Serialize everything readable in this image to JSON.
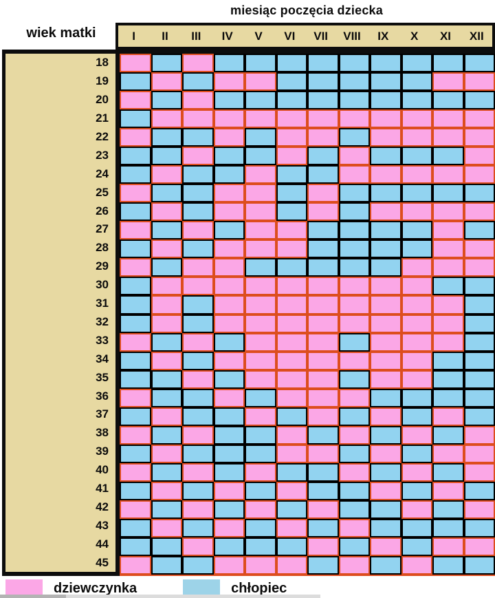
{
  "header": {
    "title": "miesiąc poczęcia dziecka",
    "row_axis_label": "wiek matki"
  },
  "legend": {
    "girl": "dziewczynka",
    "boy": "chłopiec"
  },
  "colors": {
    "girl_fill": "#fba7e6",
    "girl_border": "#dd4d1e",
    "boy_fill": "#92d3f0",
    "boy_fill_legend": "#9dd3e8",
    "header_bg": "#e7d9a2",
    "frame": "#0d0d0d"
  },
  "chart_data": {
    "type": "heatmap",
    "title": "miesiąc poczęcia dziecka",
    "xlabel": "miesiąc poczęcia dziecka",
    "ylabel": "wiek matki",
    "columns": [
      "I",
      "II",
      "III",
      "IV",
      "V",
      "VI",
      "VII",
      "VIII",
      "IX",
      "X",
      "XI",
      "XII"
    ],
    "value_legend": {
      "G": "dziewczynka",
      "B": "chłopiec"
    },
    "rows": [
      {
        "age": "18",
        "cells": "GBGBBBBBBBBB"
      },
      {
        "age": "19",
        "cells": "BGBGGBBBBBGG"
      },
      {
        "age": "20",
        "cells": "GBGBBBBBBBBB"
      },
      {
        "age": "21",
        "cells": "BGGGGGGGGGGG"
      },
      {
        "age": "22",
        "cells": "GBBGBGGBGGGG"
      },
      {
        "age": "23",
        "cells": "BBGBBGBGBBBG"
      },
      {
        "age": "24",
        "cells": "BGBBGBBGGGGG"
      },
      {
        "age": "25",
        "cells": "GBBGGBGBBBBB"
      },
      {
        "age": "26",
        "cells": "BGBGGBGBGGGG"
      },
      {
        "age": "27",
        "cells": "GBGBGGBBBBGB"
      },
      {
        "age": "28",
        "cells": "BGBGGGBBBBGG"
      },
      {
        "age": "29",
        "cells": "GBGGBBBBBGGG"
      },
      {
        "age": "30",
        "cells": "BGGGGGGGGGBB"
      },
      {
        "age": "31",
        "cells": "BGBGGGGGGGGB"
      },
      {
        "age": "32",
        "cells": "BGBGGGGGGGGB"
      },
      {
        "age": "33",
        "cells": "GBGBGGGBGGGB"
      },
      {
        "age": "34",
        "cells": "BGBGGGGGGGBB"
      },
      {
        "age": "35",
        "cells": "BBGBGGGBGGBB"
      },
      {
        "age": "36",
        "cells": "GBBGBGGGBBBB"
      },
      {
        "age": "37",
        "cells": "BGBBGBGBGBGB"
      },
      {
        "age": "38",
        "cells": "GBGBBGBGBGBG"
      },
      {
        "age": "39",
        "cells": "BGBBBGGBGBGG"
      },
      {
        "age": "40",
        "cells": "GBGBGBBGBGBG"
      },
      {
        "age": "41",
        "cells": "BGBGBGBBGBGB"
      },
      {
        "age": "42",
        "cells": "GBGBGBGBBGBG"
      },
      {
        "age": "43",
        "cells": "BGBGBGBGBBBB"
      },
      {
        "age": "44",
        "cells": "BBGBBBGBGBGG"
      },
      {
        "age": "45",
        "cells": "GBBGGGBGBGBB"
      }
    ]
  }
}
